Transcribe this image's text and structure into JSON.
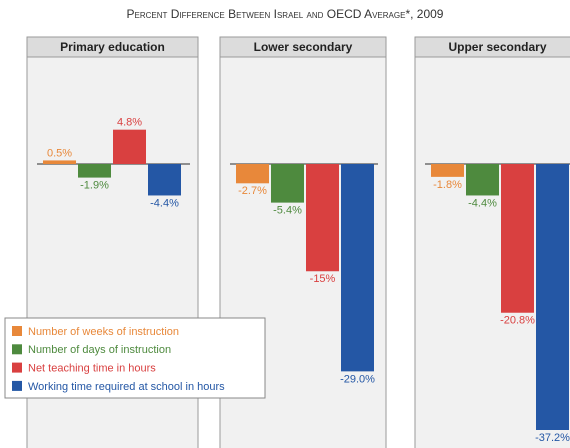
{
  "chart_data": {
    "type": "bar",
    "title": "Percent Difference Between Israel and OECD Average*, 2009",
    "categories": [
      "Primary education",
      "Lower secondary",
      "Upper secondary"
    ],
    "series": [
      {
        "name": "Number of weeks of instruction",
        "color": "#e8883a",
        "values": [
          0.5,
          -2.7,
          -1.8
        ],
        "value_labels": [
          "0.5%",
          "-2.7%",
          "-1.8%"
        ]
      },
      {
        "name": "Number of days of instruction",
        "color": "#4e8a3e",
        "values": [
          -1.9,
          -5.4,
          -4.4
        ],
        "value_labels": [
          "-1.9%",
          "-5.4%",
          "-4.4%"
        ]
      },
      {
        "name": "Net teaching time in hours",
        "color": "#d94040",
        "values": [
          4.8,
          -15,
          -20.8
        ],
        "value_labels": [
          "4.8%",
          "-15%",
          "-20.8%"
        ]
      },
      {
        "name": "Working time required at school in hours",
        "color": "#2457a5",
        "values": [
          -4.4,
          -29.0,
          -37.2
        ],
        "value_labels": [
          "-4.4%",
          "-29.0%",
          "-37.2%"
        ]
      }
    ]
  }
}
